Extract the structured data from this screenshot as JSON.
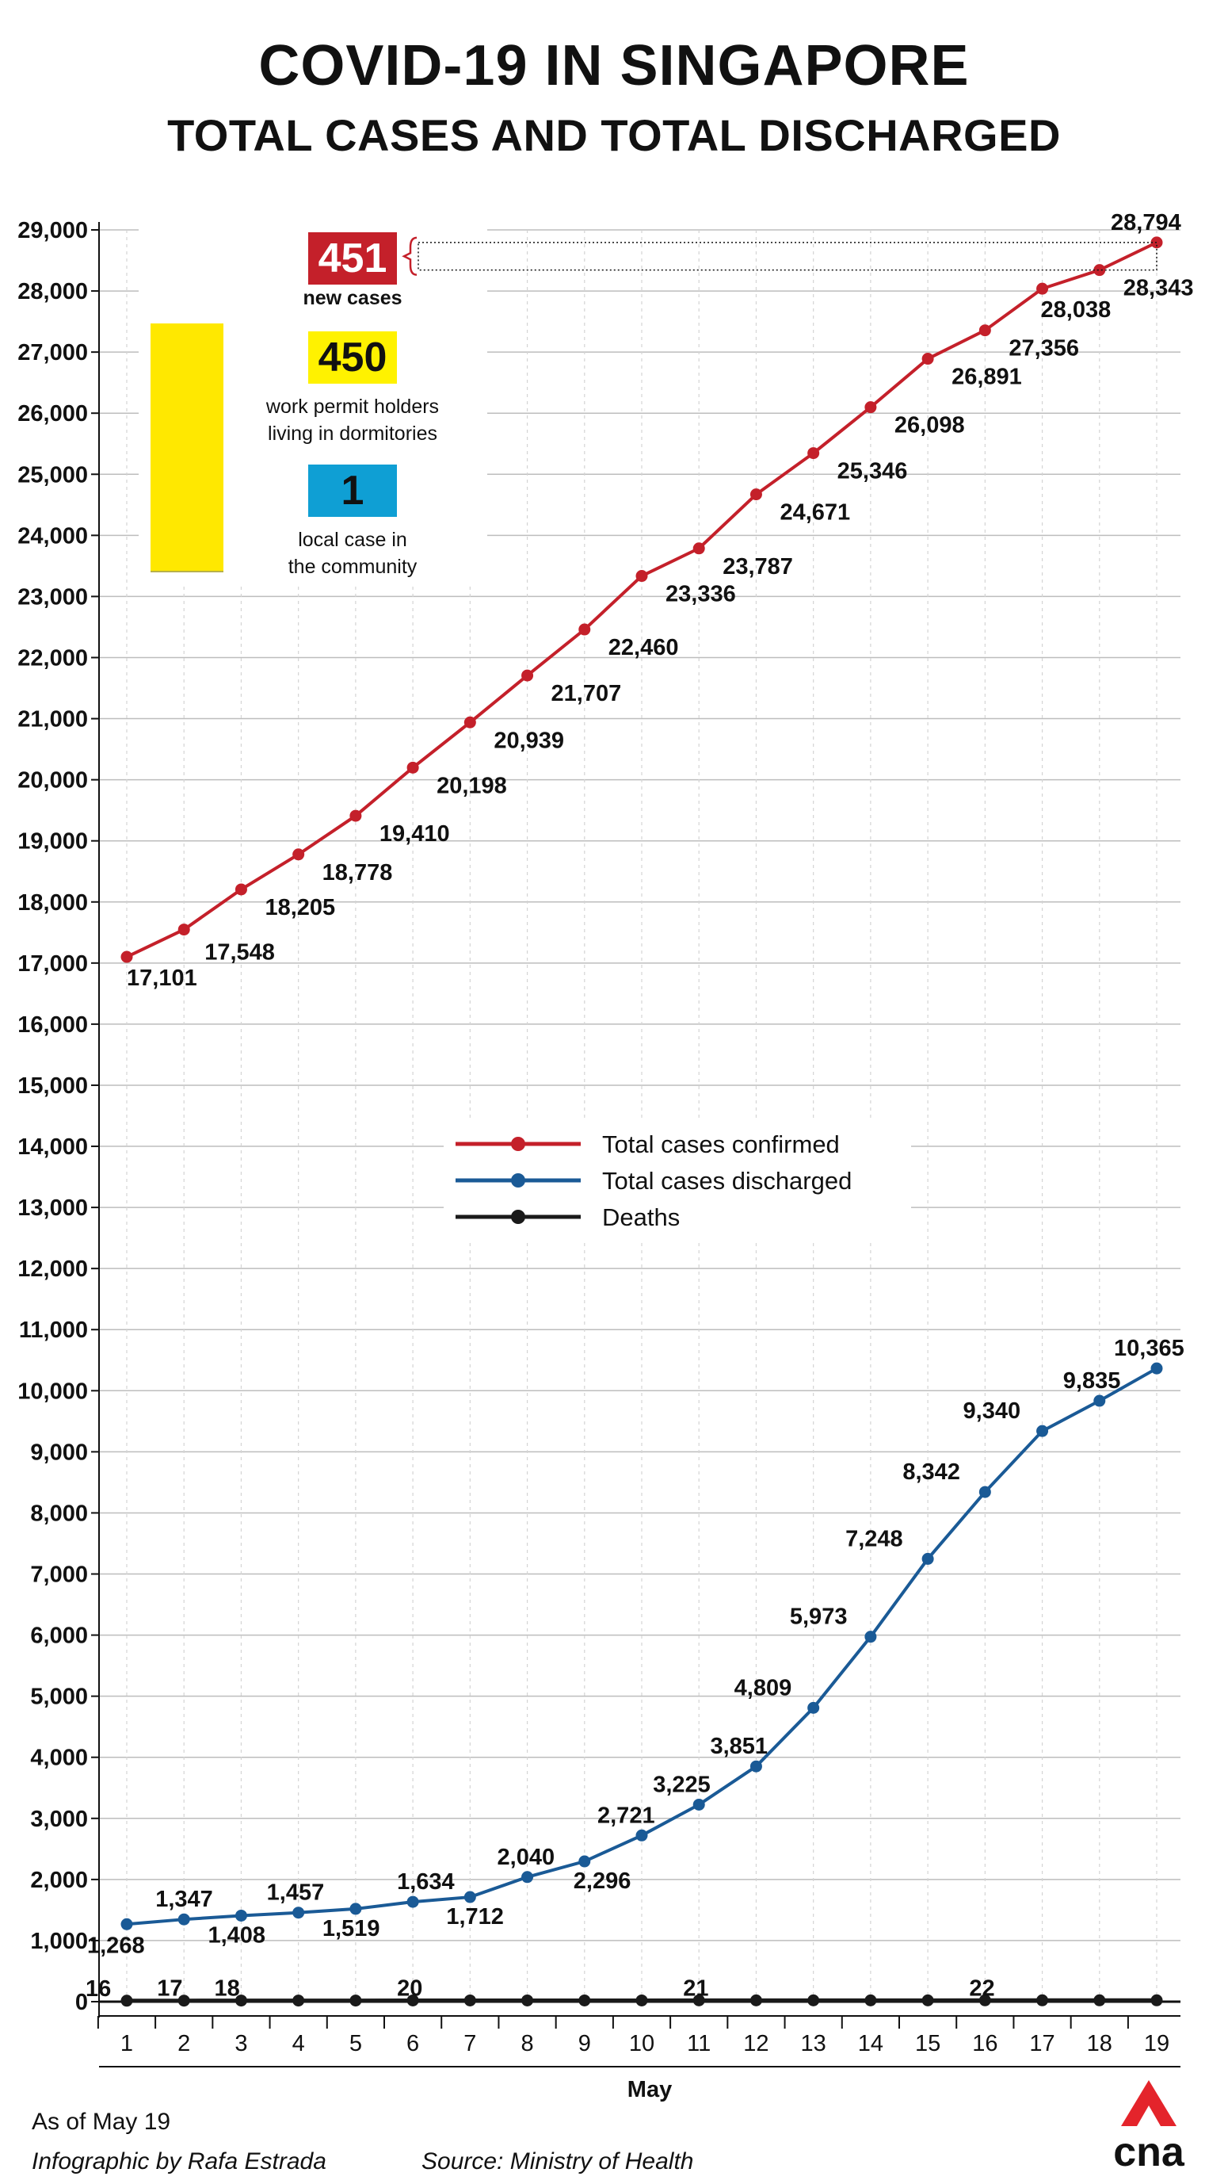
{
  "header": {
    "title": "COVID-19 IN SINGAPORE",
    "subtitle": "TOTAL CASES AND TOTAL DISCHARGED"
  },
  "callout": {
    "new_cases_value": "451",
    "new_cases_label": "new cases",
    "dormitory_value": "450",
    "dormitory_label_line1": "work permit holders",
    "dormitory_label_line2": "living in dormitories",
    "community_value": "1",
    "community_label_line1": "local case in",
    "community_label_line2": "the community",
    "colors": {
      "new": "#c4202a",
      "dorm": "#fff200",
      "comm": "#0f9fd4"
    }
  },
  "chart_data": {
    "type": "line",
    "x": [
      1,
      2,
      3,
      4,
      5,
      6,
      7,
      8,
      9,
      10,
      11,
      12,
      13,
      14,
      15,
      16,
      17,
      18,
      19
    ],
    "xlabel": "May",
    "ylabel": "",
    "ylim": [
      0,
      29000
    ],
    "yticks": [
      0,
      1000,
      2000,
      3000,
      4000,
      5000,
      6000,
      7000,
      8000,
      9000,
      10000,
      11000,
      12000,
      13000,
      14000,
      15000,
      16000,
      17000,
      18000,
      19000,
      20000,
      21000,
      22000,
      23000,
      24000,
      25000,
      26000,
      27000,
      28000,
      29000
    ],
    "grid": "horizontal",
    "legend_position": "center-right",
    "series": [
      {
        "name": "Total cases confirmed",
        "color": "#c4202a",
        "values": [
          17101,
          17548,
          18205,
          18778,
          19410,
          20198,
          20939,
          21707,
          22460,
          23336,
          23787,
          24671,
          25346,
          26098,
          26891,
          27356,
          28038,
          28343,
          28794
        ],
        "labels": [
          "17,101",
          "17,548",
          "18,205",
          "18,778",
          "19,410",
          "20,198",
          "20,939",
          "21,707",
          "22,460",
          "23,336",
          "23,787",
          "24,671",
          "25,346",
          "26,098",
          "26,891",
          "27,356",
          "28,038",
          "28,343",
          "28,794"
        ]
      },
      {
        "name": "Total cases discharged",
        "color": "#1a5a96",
        "values": [
          1268,
          1347,
          1408,
          1457,
          1519,
          1634,
          1712,
          2040,
          2296,
          2721,
          3225,
          3851,
          4809,
          5973,
          7248,
          8342,
          9340,
          9835,
          10365
        ],
        "labels": [
          "1,268",
          "1,347",
          "1,408",
          "1,457",
          "1,519",
          "1,634",
          "1,712",
          "2,040",
          "2,296",
          "2,721",
          "3,225",
          "3,851",
          "4,809",
          "5,973",
          "7,248",
          "8,342",
          "9,340",
          "9,835",
          "10,365"
        ]
      },
      {
        "name": "Deaths",
        "color": "#1a1a1a",
        "values": [
          16,
          17,
          18,
          18,
          18,
          20,
          20,
          20,
          20,
          20,
          21,
          21,
          21,
          21,
          21,
          22,
          22,
          22,
          22
        ],
        "labels": [
          "16",
          "17",
          "18",
          "",
          "",
          "20",
          "",
          "",
          "",
          "",
          "21",
          "",
          "",
          "",
          "",
          "22",
          "",
          "",
          ""
        ]
      }
    ]
  },
  "footer": {
    "as_of": "As of May 19",
    "credit": "Infographic by Rafa Estrada",
    "source": "Source: Ministry of Health",
    "logo_text": "cna"
  }
}
